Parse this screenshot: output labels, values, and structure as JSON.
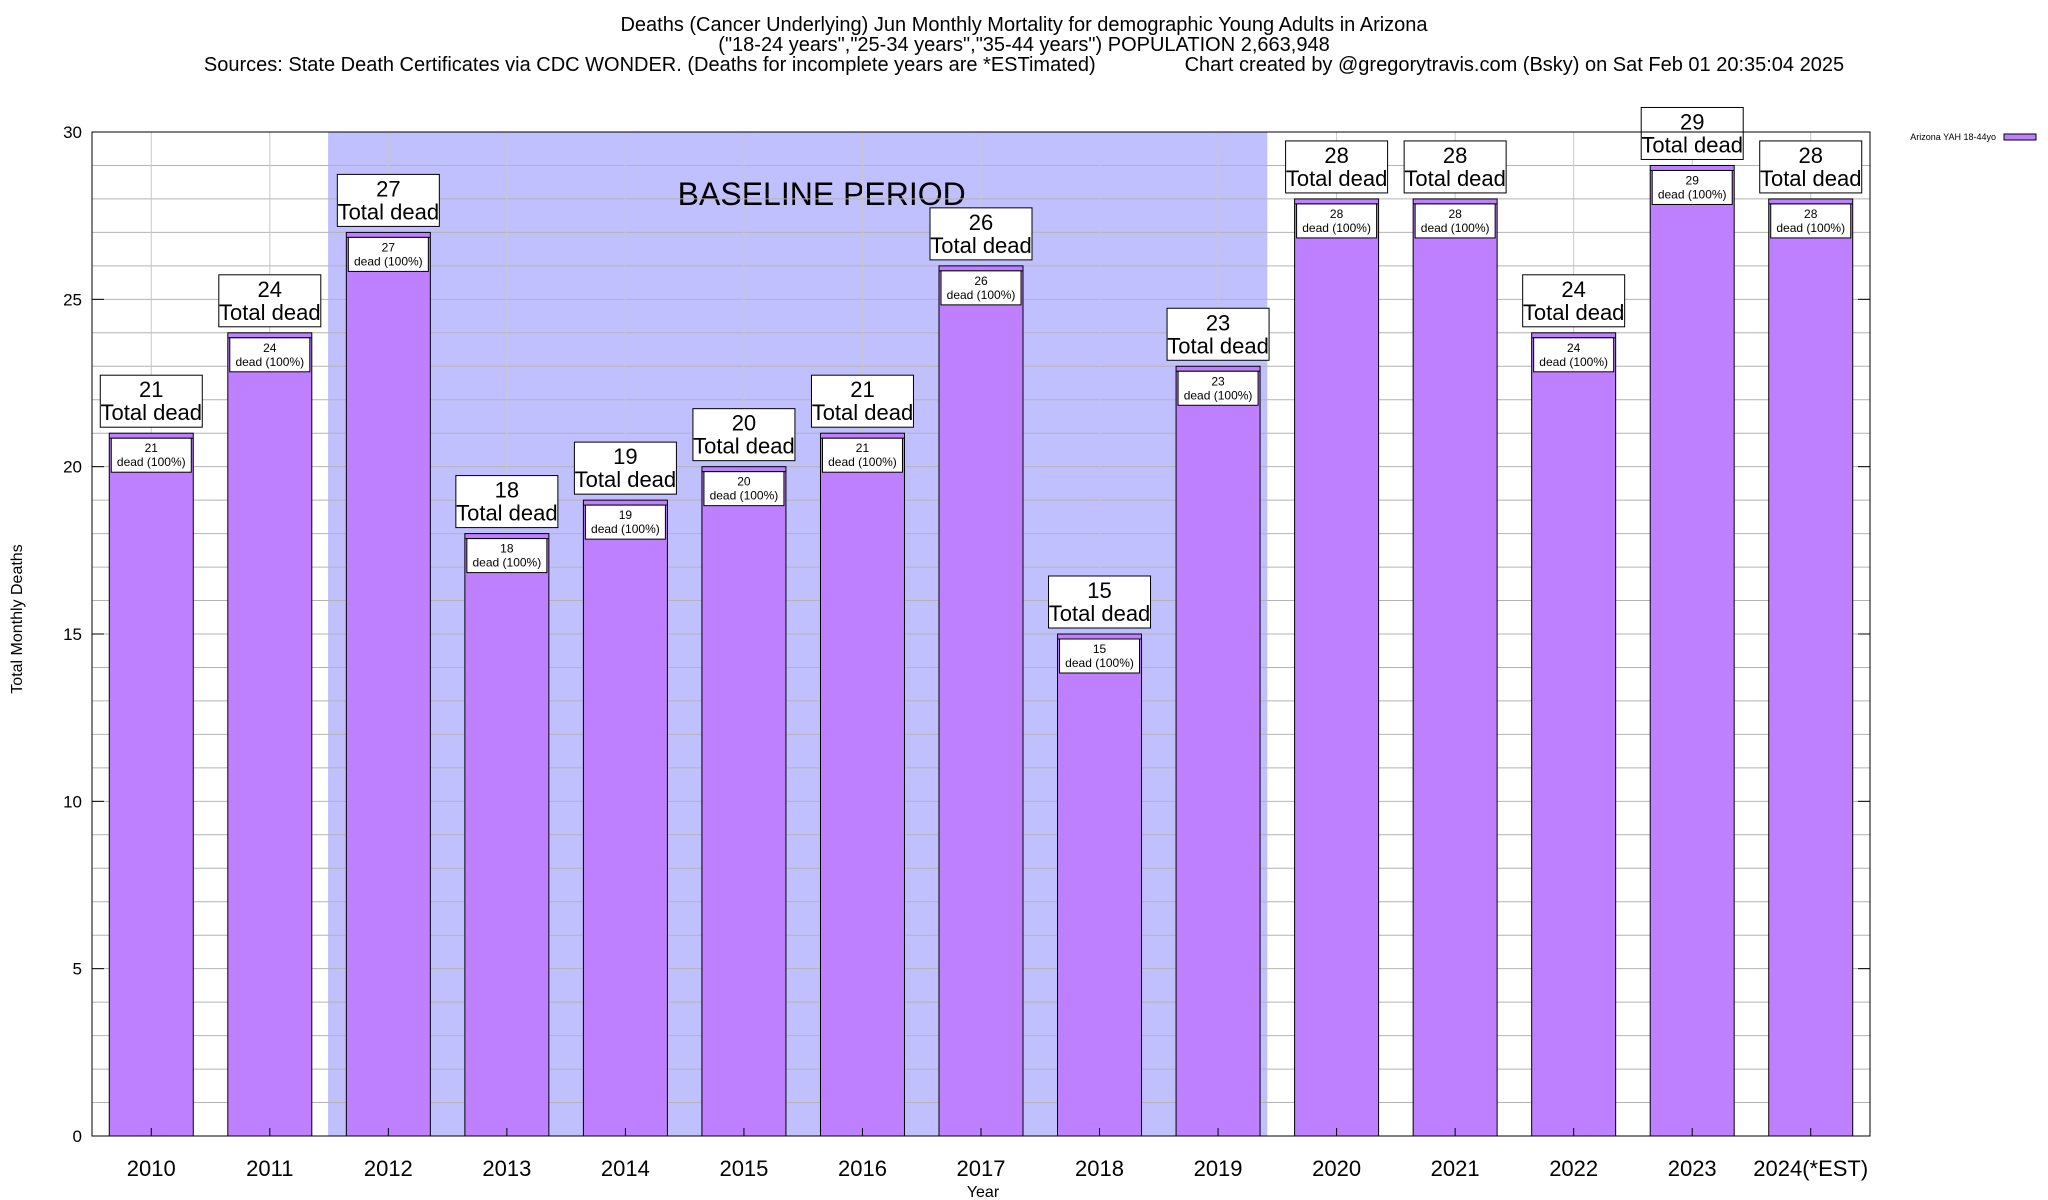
{
  "title_lines": [
    "Deaths (Cancer Underlying) Jun Monthly Mortality for demographic Young Adults in Arizona",
    "(\"18-24 years\",\"25-34 years\",\"35-44 years\") POPULATION 2,663,948",
    "Sources: State Death Certificates via CDC WONDER. (Deaths for incomplete years are *ESTimated)                Chart created by @gregorytravis.com (Bsky) on Sat Feb 01 20:35:04 2025"
  ],
  "chart_data": {
    "type": "bar",
    "title": "Deaths (Cancer Underlying) Jun Monthly Mortality for demographic Young Adults in Arizona",
    "xlabel": "Year",
    "ylabel": "Total Monthly Deaths",
    "categories": [
      "2010",
      "2011",
      "2012",
      "2013",
      "2014",
      "2015",
      "2016",
      "2017",
      "2018",
      "2019",
      "2020",
      "2021",
      "2022",
      "2023",
      "2024(*EST)"
    ],
    "series": [
      {
        "name": "Arizona YAH 18-44yo",
        "color": "#bf80ff",
        "values": [
          21,
          24,
          27,
          18,
          19,
          20,
          21,
          26,
          15,
          23,
          28,
          28,
          24,
          29,
          28
        ]
      }
    ],
    "ylim": [
      0,
      30
    ],
    "yticks": [
      0,
      5,
      10,
      15,
      20,
      25,
      30
    ],
    "grid": true,
    "legend_position": "top-right",
    "top_label_suffix": "Total dead",
    "inner_label_suffix": "dead (100%)",
    "baseline_region": {
      "label": "BASELINE PERIOD",
      "from": "2012",
      "to": "2019",
      "color": "#c0c0ff"
    }
  }
}
